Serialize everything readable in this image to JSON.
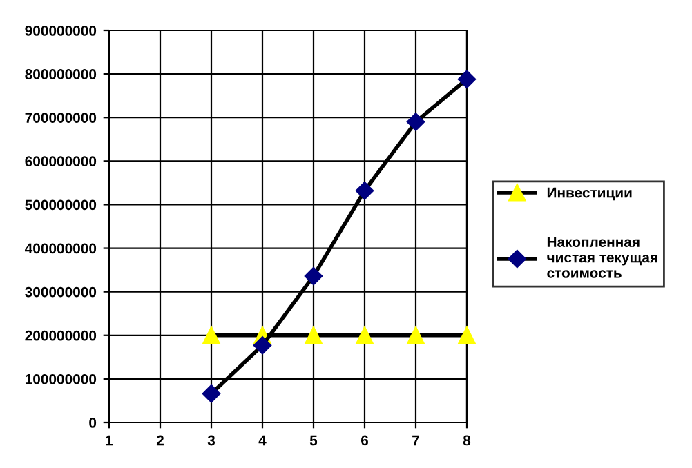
{
  "chart_data": {
    "type": "line",
    "x": [
      3,
      4,
      5,
      6,
      7,
      8
    ],
    "series": [
      {
        "name": "Инвестиции",
        "color": "#ffff00",
        "marker": "triangle",
        "values": [
          200000000,
          200000000,
          200000000,
          200000000,
          200000000,
          200000000
        ]
      },
      {
        "name": "Накопленная чистая текущая стоимость",
        "color": "#000080",
        "marker": "diamond",
        "values": [
          66000000,
          177000000,
          336000000,
          532000000,
          690000000,
          788000000
        ]
      }
    ],
    "xlim": [
      1,
      8
    ],
    "xticks": [
      1,
      2,
      3,
      4,
      5,
      6,
      7,
      8
    ],
    "ylim": [
      0,
      900000000
    ],
    "yticks": [
      0,
      100000000,
      200000000,
      300000000,
      400000000,
      500000000,
      600000000,
      700000000,
      800000000,
      900000000
    ],
    "grid": true,
    "legend": "right",
    "line_style": "solid"
  }
}
